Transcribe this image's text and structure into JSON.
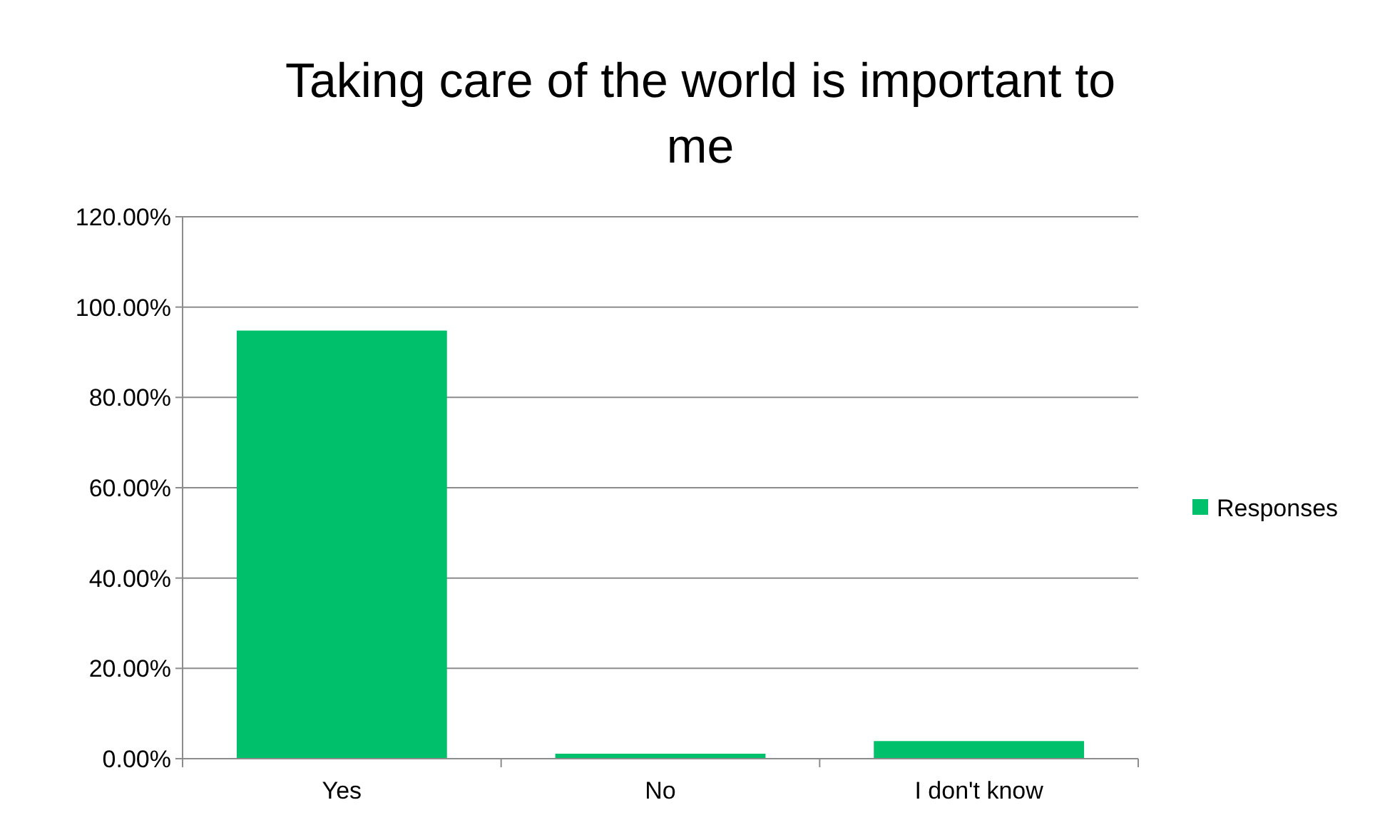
{
  "chart_data": {
    "type": "bar",
    "title": "Taking care of the world is important to me",
    "categories": [
      "Yes",
      "No",
      "I don't know"
    ],
    "series": [
      {
        "name": "Responses",
        "color": "#00c06b",
        "values": [
          94.8,
          1.1,
          3.9
        ]
      }
    ],
    "ylim": [
      0,
      120
    ],
    "yticks": [
      {
        "value": 0,
        "label": "0.00%"
      },
      {
        "value": 20,
        "label": "20.00%"
      },
      {
        "value": 40,
        "label": "40.00%"
      },
      {
        "value": 60,
        "label": "60.00%"
      },
      {
        "value": 80,
        "label": "80.00%"
      },
      {
        "value": 100,
        "label": "100.00%"
      },
      {
        "value": 120,
        "label": "120.00%"
      }
    ],
    "grid": "y",
    "legend": "right"
  }
}
